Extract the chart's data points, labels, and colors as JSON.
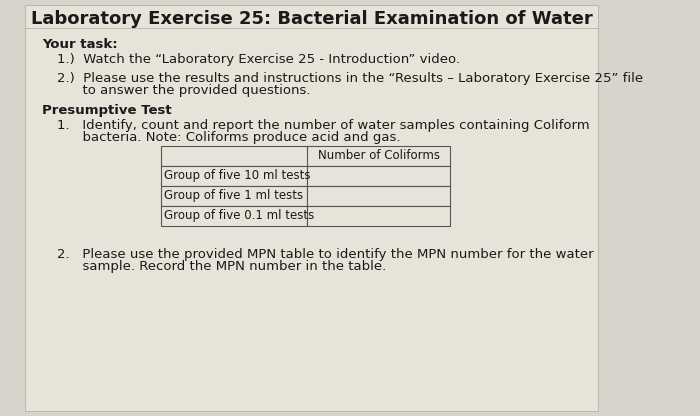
{
  "title": "Laboratory Exercise 25: Bacterial Examination of Water",
  "background_color": "#d9d4cb",
  "paper_color": "#e8e3d8",
  "title_fontsize": 13,
  "body_fontsize": 9.5,
  "bold_fontsize": 9.5,
  "your_task_label": "Your task:",
  "task1": "1.)  Watch the “Laboratory Exercise 25 - Introduction” video.",
  "task2_line1": "2.)  Please use the results and instructions in the “Results – Laboratory Exercise 25” file",
  "task2_line2": "      to answer the provided questions.",
  "presumptive_label": "Presumptive Test",
  "item1_line1": "1.   Identify, count and report the number of water samples containing Coliform",
  "item1_line2": "      bacteria. Note: Coliforms produce acid and gas.",
  "table_header": "Number of Coliforms",
  "table_rows": [
    "Group of five 10 ml tests",
    "Group of five 1 ml tests",
    "Group of five 0.1 ml tests"
  ],
  "item2_line1": "2.   Please use the provided MPN table to identify the MPN number for the water",
  "item2_line2": "      sample. Record the MPN number in the table."
}
